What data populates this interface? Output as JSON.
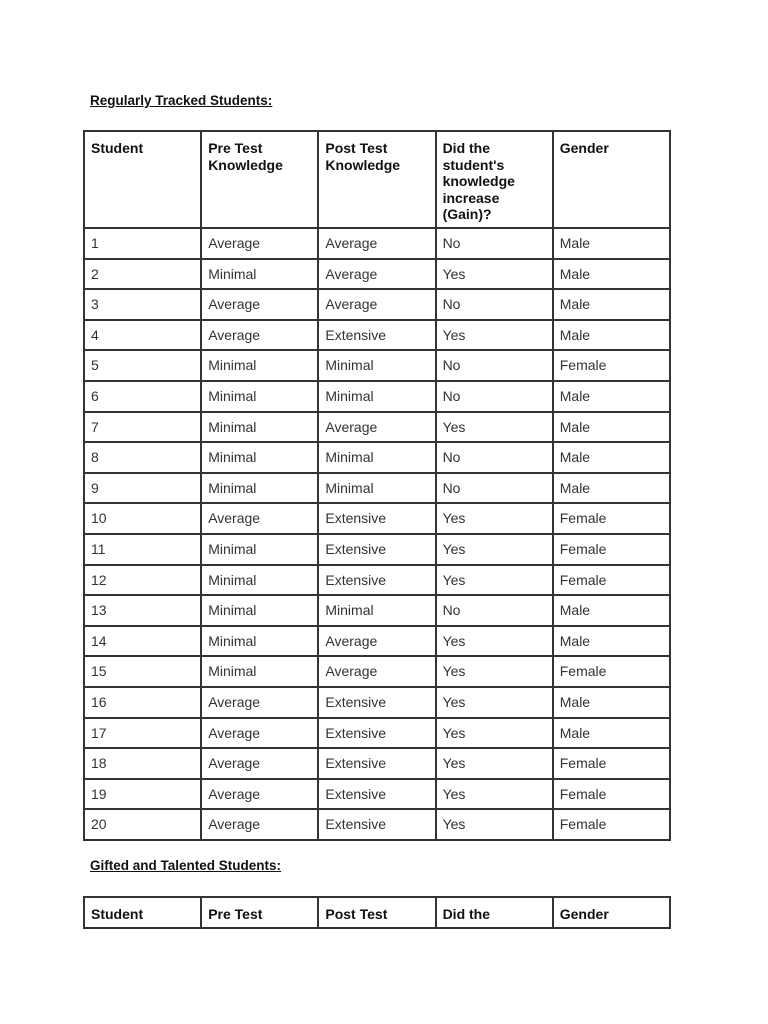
{
  "regular": {
    "heading": "Regularly Tracked Students:",
    "headers": [
      "Student",
      "Pre Test Knowledge",
      "Post Test Knowledge",
      "Did the student's knowledge increase (Gain)?",
      "Gender"
    ],
    "rows": [
      [
        "1",
        "Average",
        "Average",
        "No",
        "Male"
      ],
      [
        "2",
        "Minimal",
        "Average",
        "Yes",
        "Male"
      ],
      [
        "3",
        "Average",
        "Average",
        "No",
        "Male"
      ],
      [
        "4",
        "Average",
        "Extensive",
        "Yes",
        "Male"
      ],
      [
        "5",
        "Minimal",
        "Minimal",
        "No",
        "Female"
      ],
      [
        "6",
        "Minimal",
        "Minimal",
        "No",
        "Male"
      ],
      [
        "7",
        "Minimal",
        "Average",
        "Yes",
        "Male"
      ],
      [
        "8",
        "Minimal",
        "Minimal",
        "No",
        "Male"
      ],
      [
        "9",
        "Minimal",
        "Minimal",
        "No",
        "Male"
      ],
      [
        "10",
        "Average",
        "Extensive",
        "Yes",
        "Female"
      ],
      [
        "11",
        "Minimal",
        "Extensive",
        "Yes",
        "Female"
      ],
      [
        "12",
        "Minimal",
        "Extensive",
        "Yes",
        "Female"
      ],
      [
        "13",
        "Minimal",
        "Minimal",
        "No",
        "Male"
      ],
      [
        "14",
        "Minimal",
        "Average",
        "Yes",
        "Male"
      ],
      [
        "15",
        "Minimal",
        "Average",
        "Yes",
        "Female"
      ],
      [
        "16",
        "Average",
        "Extensive",
        "Yes",
        "Male"
      ],
      [
        "17",
        "Average",
        "Extensive",
        "Yes",
        "Male"
      ],
      [
        "18",
        "Average",
        "Extensive",
        "Yes",
        "Female"
      ],
      [
        "19",
        "Average",
        "Extensive",
        "Yes",
        "Female"
      ],
      [
        "20",
        "Average",
        "Extensive",
        "Yes",
        "Female"
      ]
    ]
  },
  "gifted": {
    "heading": "Gifted and Talented Students:",
    "headers": [
      "Student",
      "Pre Test",
      "Post Test",
      "Did the",
      "Gender"
    ]
  }
}
